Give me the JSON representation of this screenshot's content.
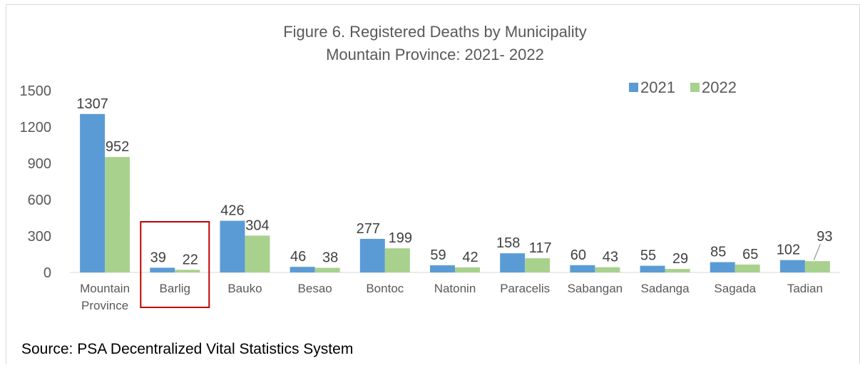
{
  "chart_data": {
    "type": "bar",
    "title": "Figure 6. Registered Deaths by Municipality",
    "subtitle": "Mountain Province: 2021- 2022",
    "categories": [
      [
        "Mountain",
        "Province"
      ],
      [
        "Barlig"
      ],
      [
        "Bauko"
      ],
      [
        "Besao"
      ],
      [
        "Bontoc"
      ],
      [
        "Natonin"
      ],
      [
        "Paracelis"
      ],
      [
        "Sabangan"
      ],
      [
        "Sadanga"
      ],
      [
        "Sagada"
      ],
      [
        "Tadian"
      ]
    ],
    "series": [
      {
        "name": "2021",
        "color": "#5b9bd5",
        "values": [
          1307,
          39,
          426,
          46,
          277,
          59,
          158,
          60,
          55,
          85,
          102
        ]
      },
      {
        "name": "2022",
        "color": "#a9d18e",
        "values": [
          952,
          22,
          304,
          38,
          199,
          42,
          117,
          43,
          29,
          65,
          93
        ]
      }
    ],
    "ylim": [
      0,
      1500
    ],
    "yticks": [
      0,
      300,
      600,
      900,
      1200,
      1500
    ],
    "grid": false,
    "legend_position": "top-right",
    "highlight_category": "Barlig",
    "highlight_color": "#c00000"
  },
  "source_note": "Source: PSA Decentralized Vital Statistics System"
}
